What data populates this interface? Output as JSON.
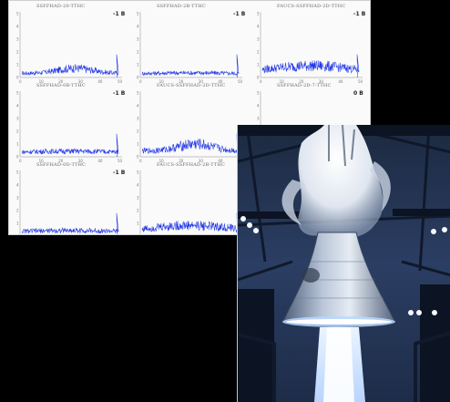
{
  "chart_sheet": {
    "panels": [
      {
        "title": "SSFFHAD-20-TTHC",
        "tag": "-1 B",
        "visible": "full",
        "shape": "rise-mid",
        "level": 0.16
      },
      {
        "title": "SSFFHAD-2B-TTHC",
        "tag": "-1 B",
        "visible": "full",
        "shape": "flat",
        "level": 0.1
      },
      {
        "title": "FAUCS-SSFFHAD-2D-TTHC",
        "tag": "-1 B",
        "visible": "full",
        "shape": "broad",
        "level": 0.22
      },
      {
        "title": "SSFFHAD-0B-TTHC",
        "tag": "-1 B",
        "visible": "full",
        "shape": "flat",
        "level": 0.12
      },
      {
        "title": "FAUCS-SSFFHAD-2D-TTHC",
        "tag": "",
        "visible": "partial",
        "shape": "rise-mid",
        "level": 0.22
      },
      {
        "title": "SSFFHAD-2D-7-TTHC",
        "tag": "0 B",
        "visible": "partial",
        "shape": "none",
        "level": 0.0
      },
      {
        "title": "SSFFHAD-0D-TTHC",
        "tag": "-1 B",
        "visible": "full",
        "shape": "flat",
        "level": 0.12
      },
      {
        "title": "FAUCS-SSFFHAD-2B-TTHC",
        "tag": "",
        "visible": "partial",
        "shape": "broad",
        "level": 0.2
      }
    ],
    "y_ticks": [
      "5",
      "4",
      "3",
      "2",
      "1",
      "0"
    ],
    "x_ticks": [
      "0",
      "10",
      "20",
      "30",
      "40",
      "50"
    ],
    "series_color": "#1f35e6"
  },
  "photo": {
    "subject": "rocket-engine-hot-fire-test",
    "colors": {
      "sky": "#2a3f66",
      "structure": "#1a2438",
      "plume": "#e8eef5",
      "nozzle": "#8a9bb5",
      "flame": "#9cc8ff"
    }
  }
}
